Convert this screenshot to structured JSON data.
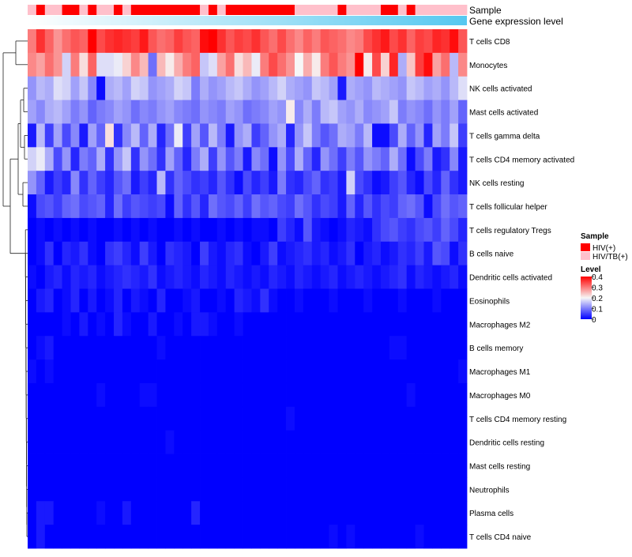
{
  "chart_data": {
    "type": "heatmap",
    "title": "",
    "annotation_tracks": [
      {
        "label": "Sample",
        "type": "categorical"
      },
      {
        "label": "Gene expression level",
        "type": "continuous-gradient"
      }
    ],
    "sample_annotation": [
      "HIV/TB(+)",
      "HIV(+)",
      "HIV/TB(+)",
      "HIV/TB(+)",
      "HIV(+)",
      "HIV(+)",
      "HIV/TB(+)",
      "HIV(+)",
      "HIV/TB(+)",
      "HIV/TB(+)",
      "HIV(+)",
      "HIV/TB(+)",
      "HIV(+)",
      "HIV(+)",
      "HIV(+)",
      "HIV(+)",
      "HIV(+)",
      "HIV(+)",
      "HIV(+)",
      "HIV(+)",
      "HIV/TB(+)",
      "HIV(+)",
      "HIV/TB(+)",
      "HIV(+)",
      "HIV(+)",
      "HIV(+)",
      "HIV(+)",
      "HIV(+)",
      "HIV(+)",
      "HIV(+)",
      "HIV(+)",
      "HIV/TB(+)",
      "HIV/TB(+)",
      "HIV/TB(+)",
      "HIV/TB(+)",
      "HIV/TB(+)",
      "HIV(+)",
      "HIV/TB(+)",
      "HIV/TB(+)",
      "HIV/TB(+)",
      "HIV/TB(+)",
      "HIV(+)",
      "HIV(+)",
      "HIV/TB(+)",
      "HIV(+)",
      "HIV/TB(+)",
      "HIV/TB(+)",
      "HIV/TB(+)",
      "HIV/TB(+)",
      "HIV/TB(+)",
      "HIV/TB(+)"
    ],
    "rows": [
      "T cells CD8",
      "Monocytes",
      "NK cells activated",
      "Mast cells activated",
      "T cells gamma delta",
      "T cells CD4 memory activated",
      "NK cells resting",
      "T cells follicular helper",
      "T cells regulatory  Tregs",
      "B cells naive",
      "Dendritic cells activated",
      "Eosinophils",
      "Macrophages M2",
      "B cells memory",
      "Macrophages M1",
      "Macrophages M0",
      "T cells CD4 memory resting",
      "Dendritic cells resting",
      "Mast cells resting",
      "Neutrophils",
      "Plasma cells",
      "T cells CD4 naive"
    ],
    "values": [
      [
        0.3,
        0.36,
        0.32,
        0.28,
        0.31,
        0.33,
        0.32,
        0.4,
        0.34,
        0.36,
        0.37,
        0.36,
        0.35,
        0.38,
        0.33,
        0.31,
        0.32,
        0.35,
        0.33,
        0.32,
        0.39,
        0.4,
        0.36,
        0.33,
        0.35,
        0.34,
        0.36,
        0.33,
        0.31,
        0.34,
        0.31,
        0.29,
        0.32,
        0.3,
        0.33,
        0.32,
        0.31,
        0.29,
        0.3,
        0.34,
        0.36,
        0.38,
        0.34,
        0.36,
        0.32,
        0.35,
        0.34,
        0.37,
        0.36,
        0.39,
        0.33
      ],
      [
        0.29,
        0.27,
        0.31,
        0.28,
        0.17,
        0.3,
        0.22,
        0.32,
        0.18,
        0.18,
        0.19,
        0.23,
        0.29,
        0.25,
        0.09,
        0.25,
        0.21,
        0.26,
        0.3,
        0.32,
        0.16,
        0.18,
        0.27,
        0.31,
        0.22,
        0.25,
        0.19,
        0.3,
        0.34,
        0.31,
        0.28,
        0.2,
        0.26,
        0.21,
        0.3,
        0.33,
        0.3,
        0.28,
        0.4,
        0.21,
        0.34,
        0.23,
        0.37,
        0.14,
        0.24,
        0.35,
        0.39,
        0.27,
        0.31,
        0.15,
        0.29
      ],
      [
        0.12,
        0.15,
        0.14,
        0.18,
        0.17,
        0.13,
        0.16,
        0.11,
        0.01,
        0.14,
        0.15,
        0.13,
        0.17,
        0.16,
        0.12,
        0.13,
        0.14,
        0.17,
        0.16,
        0.1,
        0.14,
        0.12,
        0.13,
        0.15,
        0.16,
        0.14,
        0.12,
        0.13,
        0.15,
        0.17,
        0.14,
        0.13,
        0.12,
        0.16,
        0.15,
        0.13,
        0.02,
        0.14,
        0.13,
        0.12,
        0.15,
        0.14,
        0.13,
        0.12,
        0.16,
        0.15,
        0.13,
        0.14,
        0.12,
        0.15,
        0.18
      ],
      [
        0.13,
        0.11,
        0.14,
        0.15,
        0.13,
        0.1,
        0.12,
        0.08,
        0.1,
        0.11,
        0.13,
        0.12,
        0.09,
        0.11,
        0.1,
        0.12,
        0.13,
        0.11,
        0.1,
        0.09,
        0.12,
        0.11,
        0.1,
        0.13,
        0.12,
        0.09,
        0.1,
        0.11,
        0.13,
        0.12,
        0.21,
        0.11,
        0.14,
        0.1,
        0.15,
        0.16,
        0.13,
        0.12,
        0.14,
        0.11,
        0.12,
        0.13,
        0.16,
        0.1,
        0.12,
        0.11,
        0.09,
        0.12,
        0.1,
        0.13,
        0.08
      ],
      [
        0.02,
        0.15,
        0.05,
        0.13,
        0.06,
        0.11,
        0.02,
        0.13,
        0.08,
        0.22,
        0.04,
        0.11,
        0.15,
        0.08,
        0.14,
        0.03,
        0.09,
        0.19,
        0.05,
        0.13,
        0.07,
        0.15,
        0.1,
        0.02,
        0.12,
        0.14,
        0.05,
        0.08,
        0.12,
        0.14,
        0.03,
        0.12,
        0.16,
        0.1,
        0.07,
        0.09,
        0.14,
        0.13,
        0.1,
        0.15,
        0.01,
        0.01,
        0.06,
        0.14,
        0.08,
        0.12,
        0.03,
        0.13,
        0.1,
        0.16,
        0.05
      ],
      [
        0.17,
        0.19,
        0.14,
        0.06,
        0.12,
        0.03,
        0.1,
        0.08,
        0.14,
        0.04,
        0.12,
        0.16,
        0.04,
        0.12,
        0.09,
        0.04,
        0.13,
        0.08,
        0.03,
        0.1,
        0.14,
        0.05,
        0.12,
        0.07,
        0.1,
        0.02,
        0.11,
        0.09,
        0.01,
        0.12,
        0.06,
        0.14,
        0.08,
        0.03,
        0.12,
        0.09,
        0.05,
        0.1,
        0.07,
        0.12,
        0.1,
        0.08,
        0.14,
        0.09,
        0.01,
        0.06,
        0.1,
        0.02,
        0.04,
        0.11,
        0.02
      ],
      [
        0.12,
        0.08,
        0.02,
        0.05,
        0.03,
        0.11,
        0.04,
        0.08,
        0.05,
        0.03,
        0.07,
        0.09,
        0.02,
        0.05,
        0.03,
        0.15,
        0.04,
        0.08,
        0.06,
        0.04,
        0.05,
        0.03,
        0.07,
        0.04,
        0.01,
        0.06,
        0.03,
        0.05,
        0.02,
        0.1,
        0.04,
        0.03,
        0.06,
        0.08,
        0.04,
        0.05,
        0.02,
        0.17,
        0.06,
        0.04,
        0.01,
        0.02,
        0.05,
        0.07,
        0.03,
        0.01,
        0.06,
        0.03,
        0.08,
        0.04,
        0.02
      ],
      [
        0.01,
        0.06,
        0.07,
        0.05,
        0.08,
        0.09,
        0.06,
        0.07,
        0.08,
        0.03,
        0.09,
        0.05,
        0.07,
        0.06,
        0.05,
        0.06,
        0.01,
        0.08,
        0.04,
        0.07,
        0.03,
        0.09,
        0.07,
        0.06,
        0.08,
        0.05,
        0.09,
        0.07,
        0.08,
        0.06,
        0.05,
        0.09,
        0.07,
        0.04,
        0.06,
        0.05,
        0.02,
        0.08,
        0.03,
        0.07,
        0.04,
        0.06,
        0.05,
        0.08,
        0.09,
        0.07,
        0.01,
        0.06,
        0.09,
        0.07,
        0.08
      ],
      [
        0.0,
        0.01,
        0.0,
        0.01,
        0.0,
        0.01,
        0.0,
        0.01,
        0.0,
        0.0,
        0.01,
        0.0,
        0.01,
        0.0,
        0.01,
        0.0,
        0.0,
        0.01,
        0.0,
        0.01,
        0.0,
        0.0,
        0.01,
        0.0,
        0.01,
        0.0,
        0.01,
        0.01,
        0.0,
        0.05,
        0.03,
        0.01,
        0.07,
        0.02,
        0.01,
        0.0,
        0.01,
        0.03,
        0.02,
        0.01,
        0.04,
        0.06,
        0.07,
        0.05,
        0.04,
        0.06,
        0.07,
        0.05,
        0.08,
        0.06,
        0.03
      ],
      [
        0.0,
        0.01,
        0.04,
        0.0,
        0.03,
        0.02,
        0.04,
        0.01,
        0.0,
        0.04,
        0.05,
        0.03,
        0.01,
        0.05,
        0.02,
        0.0,
        0.04,
        0.03,
        0.02,
        0.0,
        0.05,
        0.02,
        0.01,
        0.03,
        0.04,
        0.01,
        0.0,
        0.02,
        0.05,
        0.01,
        0.02,
        0.03,
        0.04,
        0.02,
        0.03,
        0.01,
        0.02,
        0.04,
        0.0,
        0.02,
        0.03,
        0.01,
        0.02,
        0.04,
        0.03,
        0.05,
        0.02,
        0.07,
        0.06,
        0.01,
        0.04
      ],
      [
        0.01,
        0.0,
        0.02,
        0.03,
        0.01,
        0.03,
        0.02,
        0.03,
        0.01,
        0.02,
        0.03,
        0.04,
        0.03,
        0.02,
        0.04,
        0.01,
        0.02,
        0.03,
        0.02,
        0.01,
        0.03,
        0.02,
        0.01,
        0.03,
        0.02,
        0.01,
        0.02,
        0.01,
        0.03,
        0.02,
        0.01,
        0.03,
        0.02,
        0.01,
        0.02,
        0.03,
        0.01,
        0.02,
        0.03,
        0.02,
        0.01,
        0.02,
        0.03,
        0.04,
        0.01,
        0.03,
        0.02,
        0.01,
        0.02,
        0.03,
        0.01
      ],
      [
        0.0,
        0.02,
        0.03,
        0.0,
        0.01,
        0.03,
        0.0,
        0.02,
        0.0,
        0.01,
        0.03,
        0.0,
        0.02,
        0.01,
        0.0,
        0.03,
        0.0,
        0.0,
        0.01,
        0.02,
        0.0,
        0.0,
        0.01,
        0.0,
        0.03,
        0.02,
        0.01,
        0.04,
        0.01,
        0.0,
        0.0,
        0.01,
        0.0,
        0.0,
        0.0,
        0.01,
        0.0,
        0.0,
        0.0,
        0.01,
        0.0,
        0.0,
        0.0,
        0.01,
        0.0,
        0.0,
        0.0,
        0.01,
        0.0,
        0.0,
        0.0
      ],
      [
        0.0,
        0.0,
        0.0,
        0.0,
        0.01,
        0.0,
        0.02,
        0.0,
        0.01,
        0.0,
        0.03,
        0.01,
        0.0,
        0.0,
        0.02,
        0.0,
        0.0,
        0.01,
        0.0,
        0.02,
        0.02,
        0.01,
        0.0,
        0.0,
        0.01,
        0.0,
        0.0,
        0.0,
        0.0,
        0.0,
        0.0,
        0.0,
        0.0,
        0.0,
        0.0,
        0.0,
        0.0,
        0.0,
        0.0,
        0.0,
        0.0,
        0.0,
        0.0,
        0.0,
        0.0,
        0.0,
        0.0,
        0.0,
        0.0,
        0.0,
        0.0
      ],
      [
        0.0,
        0.01,
        0.02,
        0.0,
        0.0,
        0.0,
        0.0,
        0.0,
        0.0,
        0.0,
        0.0,
        0.0,
        0.0,
        0.0,
        0.0,
        0.01,
        0.0,
        0.0,
        0.0,
        0.0,
        0.0,
        0.0,
        0.0,
        0.0,
        0.0,
        0.0,
        0.0,
        0.0,
        0.0,
        0.0,
        0.0,
        0.0,
        0.0,
        0.0,
        0.0,
        0.0,
        0.0,
        0.0,
        0.0,
        0.0,
        0.0,
        0.0,
        0.01,
        0.01,
        0.0,
        0.0,
        0.0,
        0.0,
        0.0,
        0.0,
        0.0
      ],
      [
        0.01,
        0.0,
        0.01,
        0.0,
        0.0,
        0.0,
        0.0,
        0.0,
        0.0,
        0.0,
        0.0,
        0.0,
        0.0,
        0.0,
        0.0,
        0.0,
        0.0,
        0.0,
        0.0,
        0.0,
        0.0,
        0.0,
        0.0,
        0.0,
        0.0,
        0.0,
        0.0,
        0.0,
        0.0,
        0.0,
        0.0,
        0.0,
        0.0,
        0.0,
        0.0,
        0.0,
        0.0,
        0.0,
        0.0,
        0.0,
        0.0,
        0.0,
        0.0,
        0.0,
        0.0,
        0.0,
        0.0,
        0.0,
        0.0,
        0.0,
        0.01
      ],
      [
        0.0,
        0.0,
        0.0,
        0.0,
        0.0,
        0.0,
        0.0,
        0.0,
        0.01,
        0.0,
        0.0,
        0.0,
        0.0,
        0.01,
        0.01,
        0.0,
        0.0,
        0.0,
        0.0,
        0.0,
        0.0,
        0.0,
        0.0,
        0.0,
        0.0,
        0.0,
        0.0,
        0.0,
        0.0,
        0.0,
        0.0,
        0.0,
        0.0,
        0.0,
        0.0,
        0.0,
        0.0,
        0.0,
        0.0,
        0.0,
        0.0,
        0.0,
        0.0,
        0.0,
        0.01,
        0.0,
        0.0,
        0.0,
        0.0,
        0.0,
        0.0
      ],
      [
        0.0,
        0.0,
        0.0,
        0.0,
        0.0,
        0.0,
        0.0,
        0.0,
        0.0,
        0.0,
        0.0,
        0.0,
        0.0,
        0.0,
        0.0,
        0.0,
        0.0,
        0.0,
        0.0,
        0.0,
        0.0,
        0.0,
        0.0,
        0.0,
        0.0,
        0.0,
        0.0,
        0.0,
        0.0,
        0.0,
        0.01,
        0.0,
        0.0,
        0.0,
        0.0,
        0.0,
        0.0,
        0.0,
        0.0,
        0.0,
        0.0,
        0.0,
        0.0,
        0.0,
        0.0,
        0.0,
        0.0,
        0.0,
        0.0,
        0.0,
        0.0
      ],
      [
        0.0,
        0.0,
        0.0,
        0.0,
        0.0,
        0.0,
        0.0,
        0.0,
        0.0,
        0.0,
        0.0,
        0.0,
        0.0,
        0.0,
        0.0,
        0.0,
        0.01,
        0.0,
        0.0,
        0.0,
        0.0,
        0.0,
        0.0,
        0.0,
        0.0,
        0.0,
        0.0,
        0.0,
        0.0,
        0.0,
        0.0,
        0.0,
        0.0,
        0.0,
        0.0,
        0.0,
        0.0,
        0.0,
        0.0,
        0.0,
        0.0,
        0.0,
        0.0,
        0.0,
        0.0,
        0.0,
        0.0,
        0.0,
        0.0,
        0.0,
        0.0
      ],
      [
        0.0,
        0.0,
        0.0,
        0.0,
        0.0,
        0.0,
        0.0,
        0.0,
        0.0,
        0.0,
        0.0,
        0.0,
        0.0,
        0.0,
        0.0,
        0.0,
        0.0,
        0.0,
        0.0,
        0.0,
        0.0,
        0.0,
        0.0,
        0.0,
        0.0,
        0.0,
        0.0,
        0.0,
        0.0,
        0.0,
        0.0,
        0.0,
        0.0,
        0.0,
        0.0,
        0.0,
        0.0,
        0.0,
        0.0,
        0.0,
        0.0,
        0.0,
        0.0,
        0.0,
        0.0,
        0.0,
        0.0,
        0.0,
        0.0,
        0.0,
        0.0
      ],
      [
        0.0,
        0.0,
        0.0,
        0.0,
        0.0,
        0.0,
        0.0,
        0.0,
        0.0,
        0.0,
        0.0,
        0.0,
        0.0,
        0.0,
        0.0,
        0.0,
        0.0,
        0.0,
        0.0,
        0.0,
        0.0,
        0.0,
        0.0,
        0.0,
        0.0,
        0.0,
        0.0,
        0.0,
        0.0,
        0.0,
        0.0,
        0.0,
        0.0,
        0.0,
        0.0,
        0.0,
        0.0,
        0.0,
        0.0,
        0.0,
        0.0,
        0.0,
        0.0,
        0.0,
        0.0,
        0.0,
        0.0,
        0.0,
        0.0,
        0.0,
        0.0
      ],
      [
        0.0,
        0.02,
        0.02,
        0.0,
        0.0,
        0.0,
        0.0,
        0.0,
        0.01,
        0.0,
        0.0,
        0.02,
        0.0,
        0.0,
        0.0,
        0.0,
        0.0,
        0.0,
        0.0,
        0.03,
        0.0,
        0.0,
        0.0,
        0.0,
        0.0,
        0.0,
        0.0,
        0.0,
        0.0,
        0.0,
        0.0,
        0.0,
        0.0,
        0.0,
        0.0,
        0.0,
        0.0,
        0.0,
        0.0,
        0.0,
        0.0,
        0.0,
        0.0,
        0.0,
        0.0,
        0.0,
        0.0,
        0.0,
        0.0,
        0.0,
        0.0
      ],
      [
        0.0,
        0.02,
        0.0,
        0.0,
        0.0,
        0.0,
        0.0,
        0.0,
        0.0,
        0.0,
        0.0,
        0.0,
        0.0,
        0.0,
        0.0,
        0.0,
        0.0,
        0.0,
        0.0,
        0.0,
        0.0,
        0.0,
        0.0,
        0.0,
        0.0,
        0.0,
        0.0,
        0.0,
        0.0,
        0.0,
        0.0,
        0.0,
        0.0,
        0.0,
        0.0,
        0.01,
        0.0,
        0.01,
        0.0,
        0.0,
        0.0,
        0.0,
        0.0,
        0.0,
        0.0,
        0.01,
        0.0,
        0.0,
        0.0,
        0.0,
        0.0
      ]
    ],
    "color_scale": {
      "label": "Level",
      "range": [
        0,
        0.4
      ],
      "ticks": [
        0.4,
        0.3,
        0.2,
        0.1,
        0
      ],
      "stops": [
        {
          "value": 0,
          "color": "#0000ff"
        },
        {
          "value": 0.2,
          "color": "#f7f7f7"
        },
        {
          "value": 0.4,
          "color": "#ff0000"
        }
      ]
    },
    "legend": {
      "title": "Sample",
      "placement": "right",
      "items": [
        {
          "label": "HIV(+)",
          "color": "#ff0000"
        },
        {
          "label": "HIV/TB(+)",
          "color": "#ffc0cb"
        }
      ]
    },
    "gradient_track_colors": [
      "#ffffff",
      "#56c8f0"
    ]
  }
}
